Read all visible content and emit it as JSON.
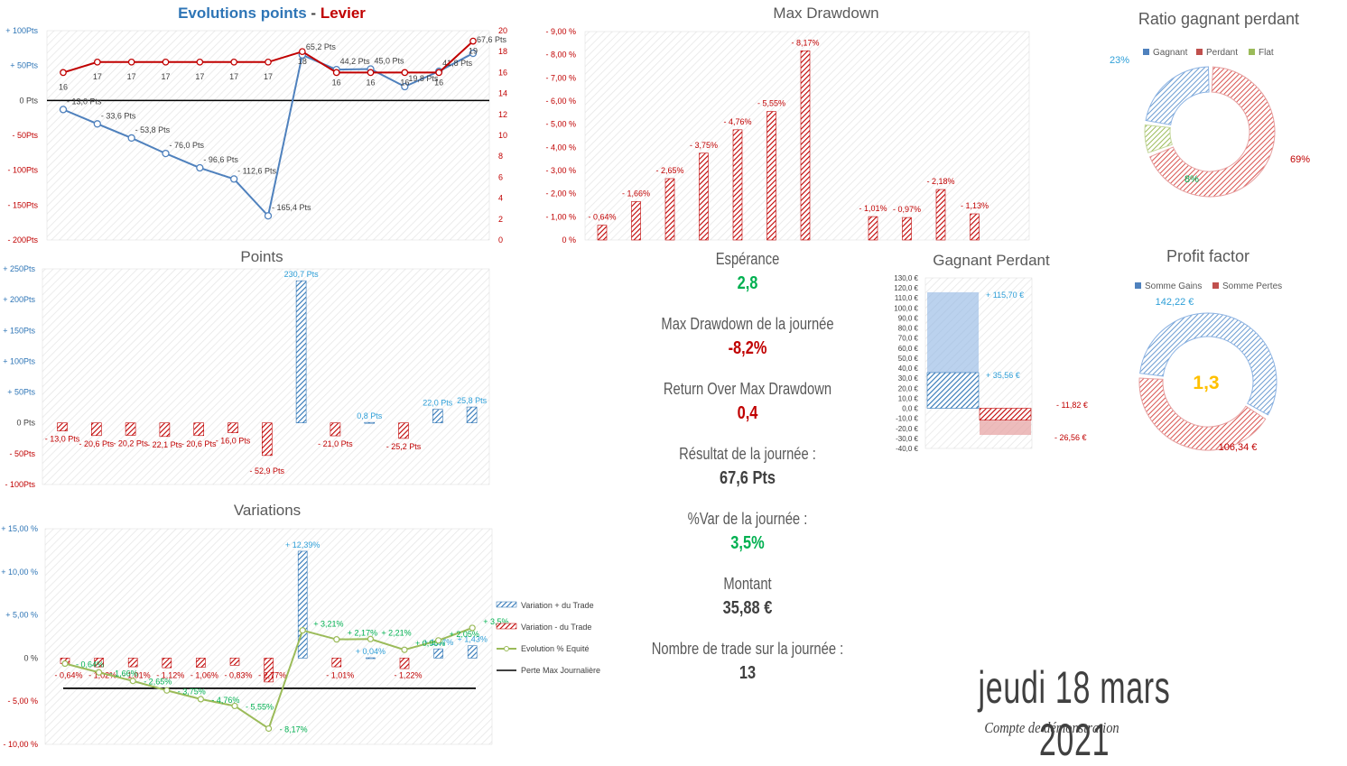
{
  "colors": {
    "blue": "#4f81bd",
    "red": "#c00000",
    "red_light": "#d9534f",
    "green": "#00b050",
    "olive": "#9bbb59",
    "yellow": "#ffc000",
    "darkred": "#c00000",
    "grid": "#d9d9d9"
  },
  "kpis": {
    "esperance_label": "Espérance",
    "esperance_value": "2,8",
    "maxdd_label": "Max Drawdown de la journée",
    "maxdd_value": "-8,2%",
    "romd_label": "Return Over Max Drawdown",
    "romd_value": "0,4",
    "resultat_label": "Résultat de la journée :",
    "resultat_value": "67,6 Pts",
    "var_label": "%Var de la journée :",
    "var_value": "3,5%",
    "montant_label": "Montant",
    "montant_value": "35,88 €",
    "nbtrade_label": "Nombre de trade sur la journée :",
    "nbtrade_value": "13"
  },
  "footer": {
    "date": "jeudi 18 mars 2021",
    "account": "Compte de démonstration"
  },
  "chart_data": [
    {
      "id": "evolution",
      "type": "line",
      "title_part1": "Evolutions points",
      "title_sep": " - ",
      "title_part2": "Levier",
      "ylim": [
        -200,
        100
      ],
      "y2lim": [
        0,
        20
      ],
      "yticks": [
        "+ 100Pts",
        "+ 50Pts",
        "0 Pts",
        "- 50Pts",
        "- 100Pts",
        "- 150Pts",
        "- 200Pts"
      ],
      "y2ticks": [
        "20",
        "18",
        "16",
        "14",
        "12",
        "10",
        "8",
        "6",
        "4",
        "2",
        "0"
      ],
      "series": [
        {
          "values": [
            -13.0,
            -33.6,
            -53.8,
            -76.0,
            -96.6,
            -112.6,
            -165.4,
            65.2,
            44.2,
            45.0,
            19.8,
            41.8,
            67.6
          ],
          "labels": [
            "- 13,0 Pts",
            "- 33,6 Pts",
            "- 53,8 Pts",
            "- 76,0 Pts",
            "- 96,6 Pts",
            "- 112,6 Pts",
            "- 165,4 Pts",
            "65,2 Pts",
            "44,2 Pts",
            "45,0 Pts",
            "19,8 Pts",
            "41,8 Pts",
            "67,6 Pts"
          ]
        },
        {
          "values": [
            16,
            17,
            17,
            17,
            17,
            17,
            17,
            18,
            16,
            16,
            16,
            16,
            19
          ],
          "labels": [
            "16",
            "17",
            "17",
            "17",
            "17",
            "17",
            "17",
            "18",
            "16",
            "16",
            "16",
            "16",
            "19"
          ]
        }
      ]
    },
    {
      "id": "drawdown",
      "type": "bar",
      "title": "Max Drawdown",
      "ylim": [
        0,
        9
      ],
      "yticks": [
        "- 9,00 %",
        "- 8,00 %",
        "- 7,00 %",
        "- 6,00 %",
        "- 5,00 %",
        "- 4,00 %",
        "- 3,00 %",
        "- 2,00 %",
        "- 1,00 %",
        "0 %"
      ],
      "values": [
        0.64,
        1.66,
        2.65,
        3.75,
        4.76,
        5.55,
        8.17,
        null,
        1.01,
        0.97,
        2.18,
        1.13
      ],
      "labels": [
        "- 0,64%",
        "- 1,66%",
        "- 2,65%",
        "- 3,75%",
        "- 4,76%",
        "- 5,55%",
        "- 8,17%",
        "",
        "- 1,01%",
        "- 0,97%",
        "- 2,18%",
        "- 1,13%"
      ]
    },
    {
      "id": "ratio",
      "type": "pie",
      "title": "Ratio gagnant perdant",
      "legend": [
        "Gagnant",
        "Perdant",
        "Flat"
      ],
      "values": [
        23,
        69,
        8
      ],
      "labels": [
        "23%",
        "69%",
        "8%"
      ]
    },
    {
      "id": "points",
      "type": "bar",
      "title": "Points",
      "ylim": [
        -100,
        250
      ],
      "yticks": [
        "+ 250Pts",
        "+ 200Pts",
        "+ 150Pts",
        "+ 100Pts",
        "+ 50Pts",
        "0 Pts",
        "- 50Pts",
        "- 100Pts"
      ],
      "values": [
        -13.0,
        -20.6,
        -20.2,
        -22.1,
        -20.6,
        -16.0,
        -52.9,
        230.7,
        -21.0,
        0.8,
        -25.2,
        22.0,
        25.8
      ],
      "labels": [
        "- 13,0 Pts",
        "- 20,6 Pts",
        "- 20,2 Pts",
        "- 22,1 Pts",
        "- 20,6 Pts",
        "- 16,0 Pts",
        "- 52,9 Pts",
        "230,7 Pts",
        "- 21,0 Pts",
        "0,8 Pts",
        "- 25,2 Pts",
        "22,0 Pts",
        "25,8 Pts"
      ]
    },
    {
      "id": "gagnant_perdant",
      "type": "bar",
      "title": "Gagnant Perdant",
      "ylim": [
        -40,
        130
      ],
      "yticks": [
        "130,0 €",
        "120,0 €",
        "110,0 €",
        "100,0 €",
        "90,0 €",
        "80,0 €",
        "70,0 €",
        "60,0 €",
        "50,0 €",
        "40,0 €",
        "30,0 €",
        "20,0 €",
        "10,0 €",
        "0,0 €",
        "-10,0 €",
        "-20,0 €",
        "-30,0 €",
        "-40,0 €"
      ],
      "series": [
        {
          "values": [
            115.7,
            35.56
          ],
          "labels": [
            "+ 115,70 €",
            "+ 35,56 €"
          ]
        },
        {
          "values": [
            -11.82,
            -26.56
          ],
          "labels": [
            "- 11,82 €",
            "- 26,56 €"
          ]
        }
      ]
    },
    {
      "id": "profit",
      "type": "pie",
      "title": "Profit factor",
      "legend": [
        "Somme Gains",
        "Somme Pertes"
      ],
      "values": [
        142.22,
        106.34
      ],
      "labels": [
        "142,22 €",
        "106,34 €"
      ],
      "center": "1,3"
    },
    {
      "id": "variations",
      "type": "bar",
      "title": "Variations",
      "ylim": [
        -10,
        15
      ],
      "yticks": [
        "+ 15,00 %",
        "+ 10,00 %",
        "+ 5,00 %",
        "0 %",
        "- 5,00 %",
        "- 10,00 %"
      ],
      "legend": [
        "Variation + du Trade",
        "Variation - du Trade",
        "Evolution % Equité",
        "Perte Max Journalière"
      ],
      "bars": [
        -0.64,
        -1.02,
        -1.01,
        -1.12,
        -1.06,
        -0.83,
        -2.77,
        12.39,
        -1.01,
        0.04,
        -1.22,
        1.07,
        1.43
      ],
      "bar_labels": [
        "- 0,64%",
        "- 1,02%",
        "- 1,01%",
        "- 1,12%",
        "- 1,06%",
        "- 0,83%",
        "- 2,77%",
        "+ 12,39%",
        "- 1,01%",
        "+ 0,04%",
        "- 1,22%",
        "+ 1,07%",
        "+ 1,43%"
      ],
      "equity": [
        -0.64,
        -1.66,
        -2.65,
        -3.75,
        -4.76,
        -5.55,
        -8.17,
        3.21,
        2.17,
        2.21,
        0.96,
        2.05,
        3.5
      ],
      "equity_labels": [
        "- 0,64%",
        "- 1,66%",
        "- 2,65%",
        "- 3,75%",
        "- 4,76%",
        "- 5,55%",
        "- 8,17%",
        "+ 3,21%",
        "+ 2,17%",
        "+ 2,21%",
        "+ 0,96%",
        "+ 2,05%",
        "+ 3,5%"
      ],
      "max_loss": -3.5
    }
  ]
}
